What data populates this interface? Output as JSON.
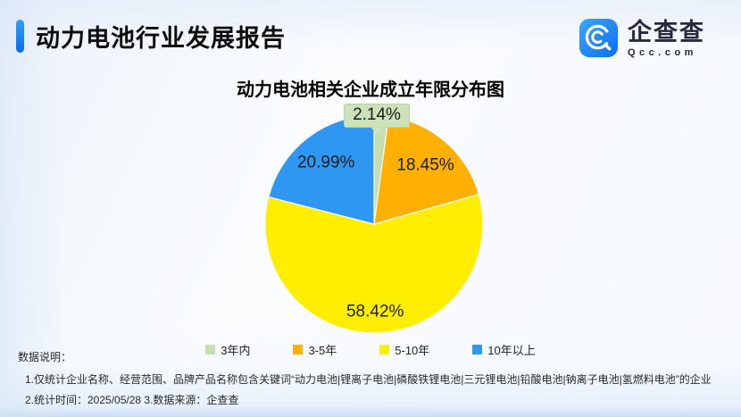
{
  "header": {
    "title": "动力电池行业发展报告"
  },
  "logo": {
    "name": "企查查",
    "domain": "Qcc.com",
    "brand_color": "#1778F0"
  },
  "chart_data": {
    "type": "pie",
    "title": "动力电池相关企业成立年限分布图",
    "labels": [
      "3年内",
      "3-5年",
      "5-10年",
      "10年以上"
    ],
    "values": [
      2.14,
      18.45,
      58.42,
      20.99
    ],
    "unit": "%",
    "colors": [
      "#C7DDB2",
      "#FFB000",
      "#FFEE00",
      "#2E97F2"
    ],
    "callout_label": "2.14%",
    "legend_position": "bottom",
    "start_angle": "top",
    "direction": "clockwise",
    "label_color": "#1C1C1C"
  },
  "notes": {
    "heading": "数据说明：",
    "line1": "1.仅统计企业名称、经营范围、品牌产品名称包含关键词“动力电池|锂离子电池|磷酸铁锂电池|三元锂电池|铅酸电池|钠离子电池|氢燃料电池”的企业",
    "line2": "2.统计时间：2025/05/28   3.数据来源：企查查"
  }
}
